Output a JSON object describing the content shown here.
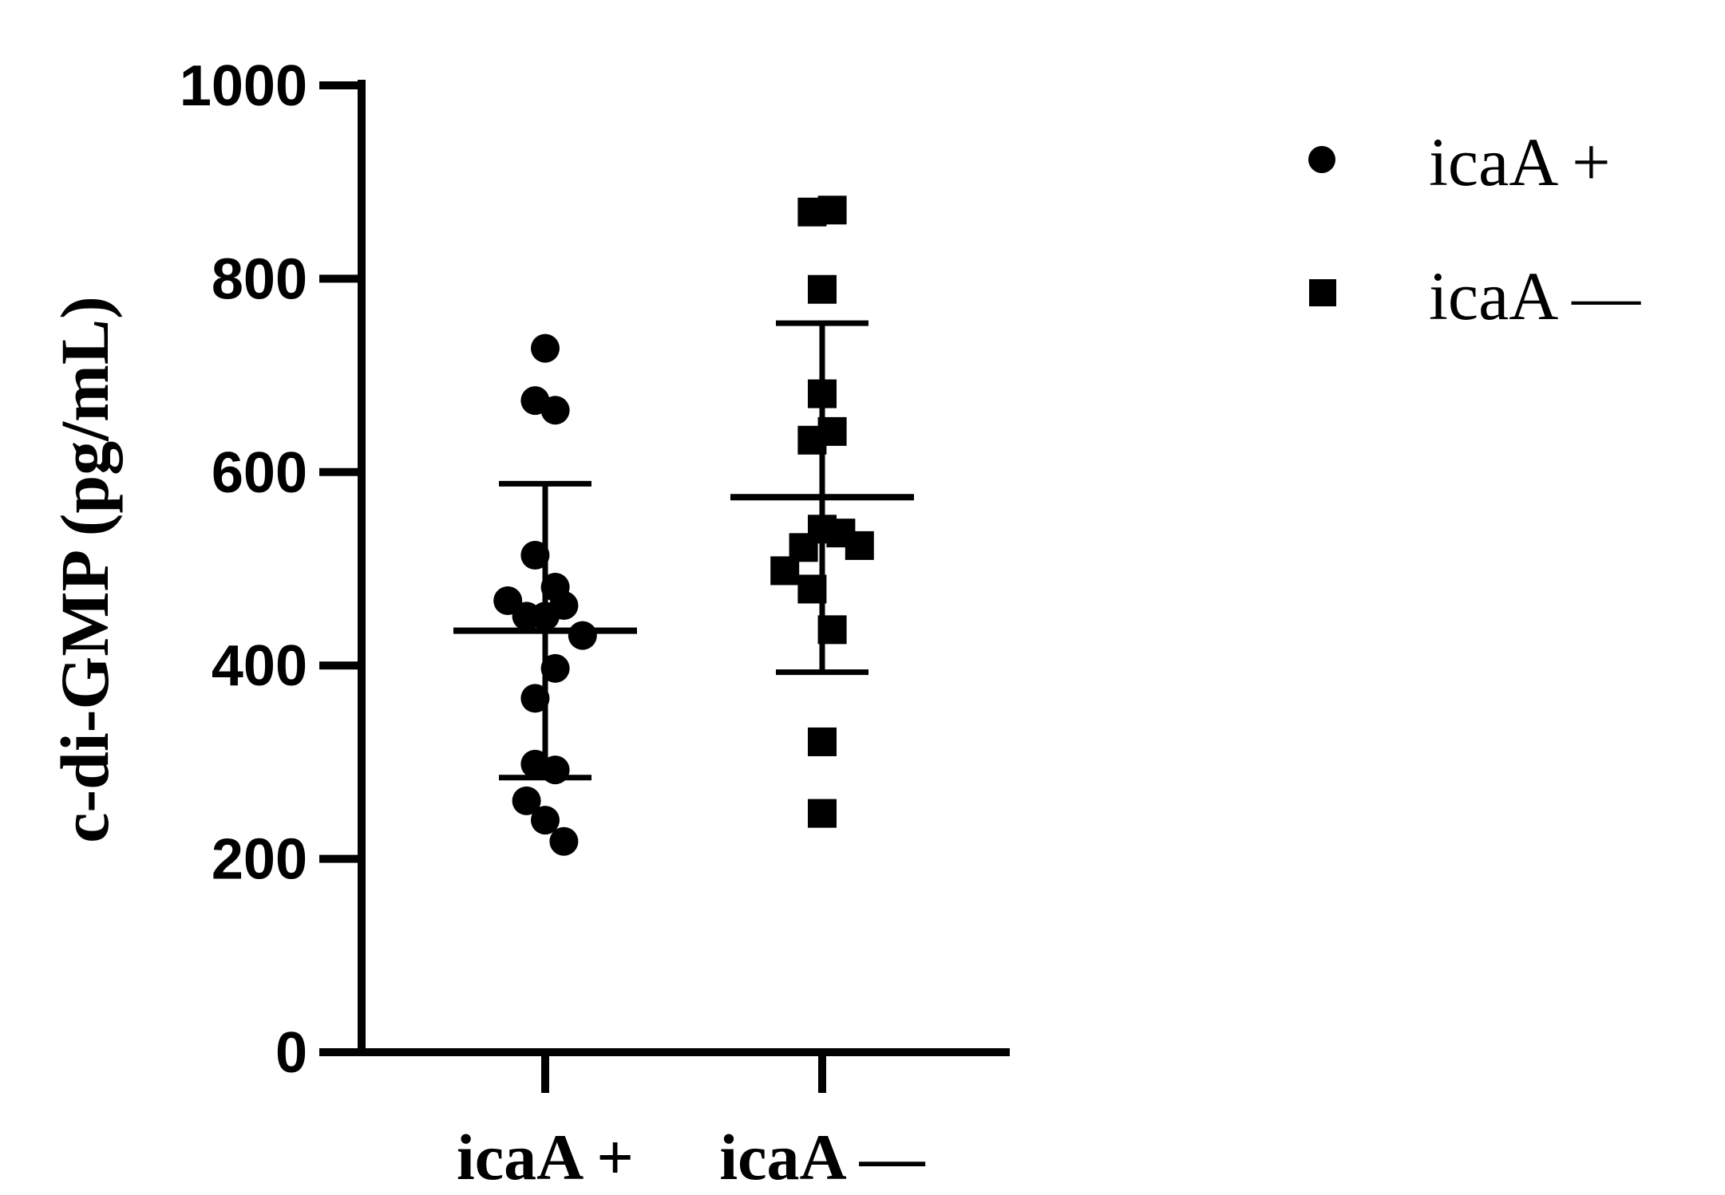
{
  "chart_data": {
    "type": "scatter",
    "title": "",
    "xlabel": "",
    "ylabel": "c-di-GMP (pg/mL)",
    "ylim": [
      0,
      1000
    ],
    "yticks": [
      "0",
      "200",
      "400",
      "600",
      "800",
      "1000"
    ],
    "ytick_values": [
      0,
      200,
      400,
      600,
      800,
      1000
    ],
    "grid": false,
    "legend_position": "top-right",
    "categories": [
      "icaA +",
      "icaA —"
    ],
    "series": [
      {
        "name": "icaA +",
        "marker": "circle",
        "color": "#000000",
        "category_index": 0,
        "points": [
          {
            "offset": 0.0,
            "y": 728
          },
          {
            "offset": -0.07,
            "y": 674
          },
          {
            "offset": 0.07,
            "y": 664
          },
          {
            "offset": -0.07,
            "y": 514
          },
          {
            "offset": 0.07,
            "y": 481
          },
          {
            "offset": -0.26,
            "y": 467
          },
          {
            "offset": 0.13,
            "y": 462
          },
          {
            "offset": -0.13,
            "y": 451
          },
          {
            "offset": 0.0,
            "y": 451
          },
          {
            "offset": 0.26,
            "y": 431
          },
          {
            "offset": 0.07,
            "y": 397
          },
          {
            "offset": -0.07,
            "y": 366
          },
          {
            "offset": -0.07,
            "y": 298
          },
          {
            "offset": 0.07,
            "y": 292
          },
          {
            "offset": -0.13,
            "y": 260
          },
          {
            "offset": 0.0,
            "y": 240
          },
          {
            "offset": 0.13,
            "y": 218
          }
        ],
        "mean": 436,
        "sd_low": 284,
        "sd_high": 588
      },
      {
        "name": "icaA —",
        "marker": "square",
        "color": "#000000",
        "category_index": 1,
        "points": [
          {
            "offset": -0.07,
            "y": 869
          },
          {
            "offset": 0.07,
            "y": 871
          },
          {
            "offset": 0.0,
            "y": 789
          },
          {
            "offset": 0.0,
            "y": 681
          },
          {
            "offset": 0.07,
            "y": 642
          },
          {
            "offset": -0.07,
            "y": 633
          },
          {
            "offset": 0.0,
            "y": 541
          },
          {
            "offset": 0.13,
            "y": 537
          },
          {
            "offset": -0.13,
            "y": 522
          },
          {
            "offset": 0.26,
            "y": 524
          },
          {
            "offset": -0.26,
            "y": 498
          },
          {
            "offset": -0.07,
            "y": 479
          },
          {
            "offset": 0.07,
            "y": 437
          },
          {
            "offset": 0.0,
            "y": 321
          },
          {
            "offset": 0.0,
            "y": 247
          }
        ],
        "mean": 574,
        "sd_low": 393,
        "sd_high": 754
      }
    ]
  }
}
